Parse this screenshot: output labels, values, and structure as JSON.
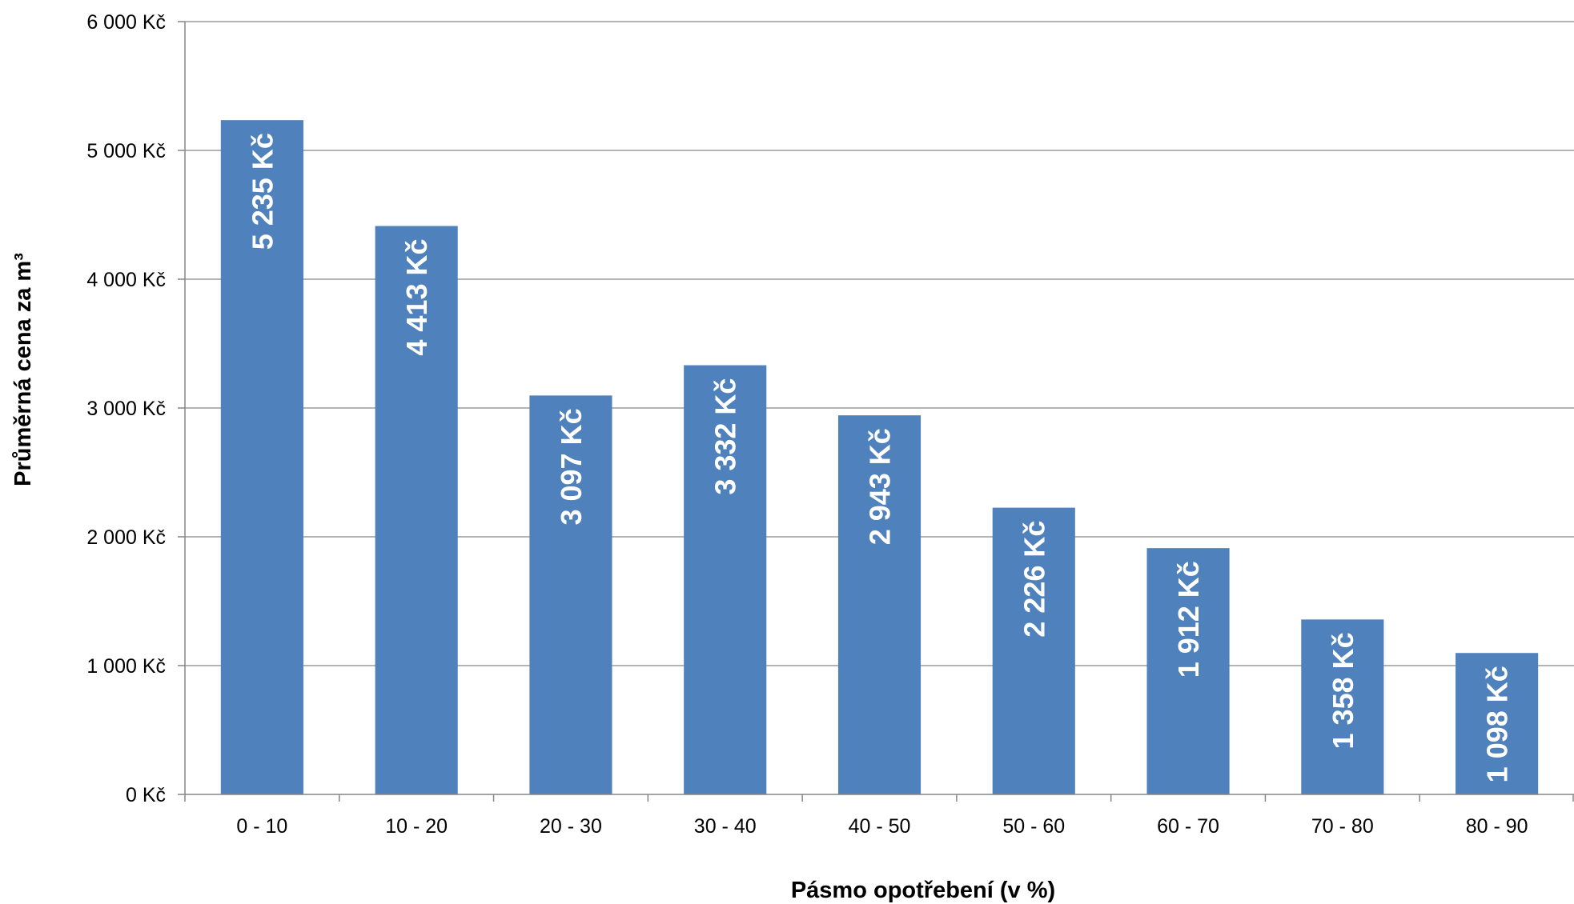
{
  "chart_data": {
    "type": "bar",
    "title": "",
    "xlabel": "Pásmo opotřebení (v %)",
    "ylabel": "Průměrná cena za m³",
    "categories": [
      "0 - 10",
      "10 - 20",
      "20 - 30",
      "30 - 40",
      "40 - 50",
      "50 - 60",
      "60 - 70",
      "70 - 80",
      "80 - 90"
    ],
    "values": [
      5235,
      4413,
      3097,
      3332,
      2943,
      2226,
      1912,
      1358,
      1098
    ],
    "value_labels": [
      "5 235 Kč",
      "4 413 Kč",
      "3 097 Kč",
      "3 332 Kč",
      "2 943 Kč",
      "2 226 Kč",
      "1 912 Kč",
      "1 358 Kč",
      "1 098 Kč"
    ],
    "ylim": [
      0,
      6000
    ],
    "yticks": [
      0,
      1000,
      2000,
      3000,
      4000,
      5000,
      6000
    ],
    "ytick_labels": [
      "0 Kč",
      "1 000 Kč",
      "2 000 Kč",
      "3 000 Kč",
      "4 000 Kč",
      "5 000 Kč",
      "6 000 Kč"
    ],
    "grid": true,
    "legend": "none",
    "colors": {
      "bar": "#4f81bd",
      "grid": "#868686",
      "axis": "#868686",
      "label": "#ffffff"
    }
  }
}
